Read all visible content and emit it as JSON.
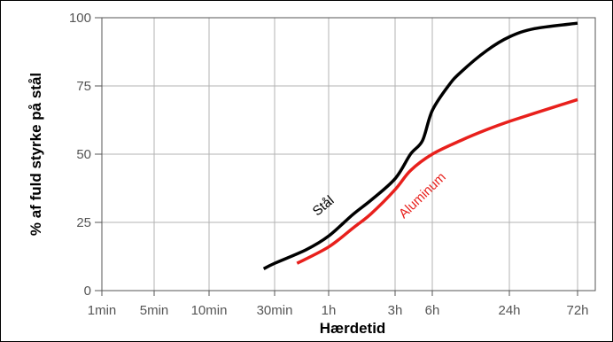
{
  "chart_data": {
    "type": "line",
    "xlabel": "Hærdetid",
    "ylabel": "% af fuld styrke på stål",
    "x_ticks": [
      "1min",
      "5min",
      "10min",
      "30min",
      "1h",
      "3h",
      "6h",
      "24h",
      "72h"
    ],
    "y_ticks": [
      0,
      25,
      50,
      75,
      100
    ],
    "ylim": [
      0,
      100
    ],
    "xscale": "log",
    "grid": true,
    "series": [
      {
        "name": "Stål",
        "color": "#000000",
        "points": [
          [
            "25min",
            8
          ],
          [
            "30min",
            10
          ],
          [
            "45min",
            15
          ],
          [
            "1h",
            20
          ],
          [
            "1.5h",
            28
          ],
          [
            "2h",
            33
          ],
          [
            "3h",
            41
          ],
          [
            "4h",
            50
          ],
          [
            "5h",
            55
          ],
          [
            "6h",
            66
          ],
          [
            "8h",
            75
          ],
          [
            "10h",
            80
          ],
          [
            "16h",
            88
          ],
          [
            "24h",
            93
          ],
          [
            "36h",
            96
          ],
          [
            "72h",
            98
          ]
        ]
      },
      {
        "name": "Aluminum",
        "color": "#e8201c",
        "points": [
          [
            "40min",
            10
          ],
          [
            "1h",
            16
          ],
          [
            "1.5h",
            23
          ],
          [
            "2h",
            28
          ],
          [
            "3h",
            37
          ],
          [
            "4h",
            44
          ],
          [
            "6h",
            50
          ],
          [
            "10h",
            55
          ],
          [
            "16h",
            59
          ],
          [
            "24h",
            62
          ],
          [
            "36h",
            65
          ],
          [
            "72h",
            70
          ]
        ]
      }
    ]
  }
}
